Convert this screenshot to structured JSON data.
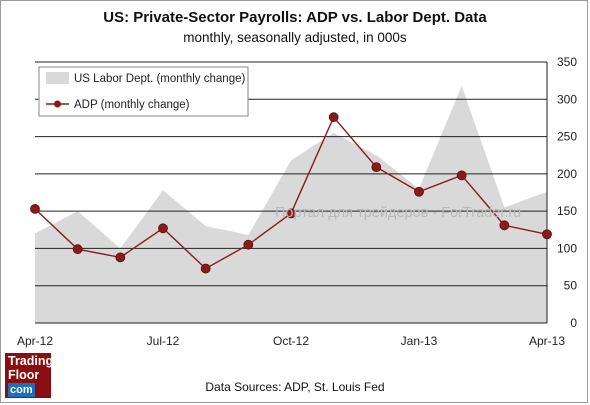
{
  "chart_data": {
    "type": "area+line",
    "title": "US: Private-Sector Payrolls: ADP vs. Labor Dept. Data",
    "subtitle": "monthly, seasonally adjusted, in 000s",
    "x": [
      "Apr-12",
      "May-12",
      "Jun-12",
      "Jul-12",
      "Aug-12",
      "Sep-12",
      "Oct-12",
      "Nov-12",
      "Dec-12",
      "Jan-13",
      "Feb-13",
      "Mar-13",
      "Apr-13"
    ],
    "x_tick_labels": [
      "Apr-12",
      "Jul-12",
      "Oct-12",
      "Jan-13",
      "Apr-13"
    ],
    "ylim": [
      0,
      350
    ],
    "y_ticks": [
      "0",
      "50",
      "100",
      "150",
      "200",
      "250",
      "300",
      "350"
    ],
    "grid": true,
    "legend_position": "top-left",
    "series": [
      {
        "name": "US Labor Dept. (monthly change)",
        "kind": "area",
        "color": "#d9d9d9",
        "values": [
          120,
          150,
          100,
          178,
          130,
          118,
          218,
          255,
          225,
          180,
          318,
          155,
          176
        ]
      },
      {
        "name": "ADP (monthly change)",
        "kind": "line",
        "color": "#8b1a1a",
        "values": [
          153,
          99,
          88,
          127,
          73,
          105,
          147,
          276,
          209,
          176,
          198,
          131,
          119
        ]
      }
    ]
  },
  "source": "Data Sources: ADP, St. Louis Fed",
  "logo": {
    "line1": "Trading",
    "line2": "Floor",
    "line3": "com"
  },
  "watermark": "Портал для трейдеров - ForTrader.ru"
}
